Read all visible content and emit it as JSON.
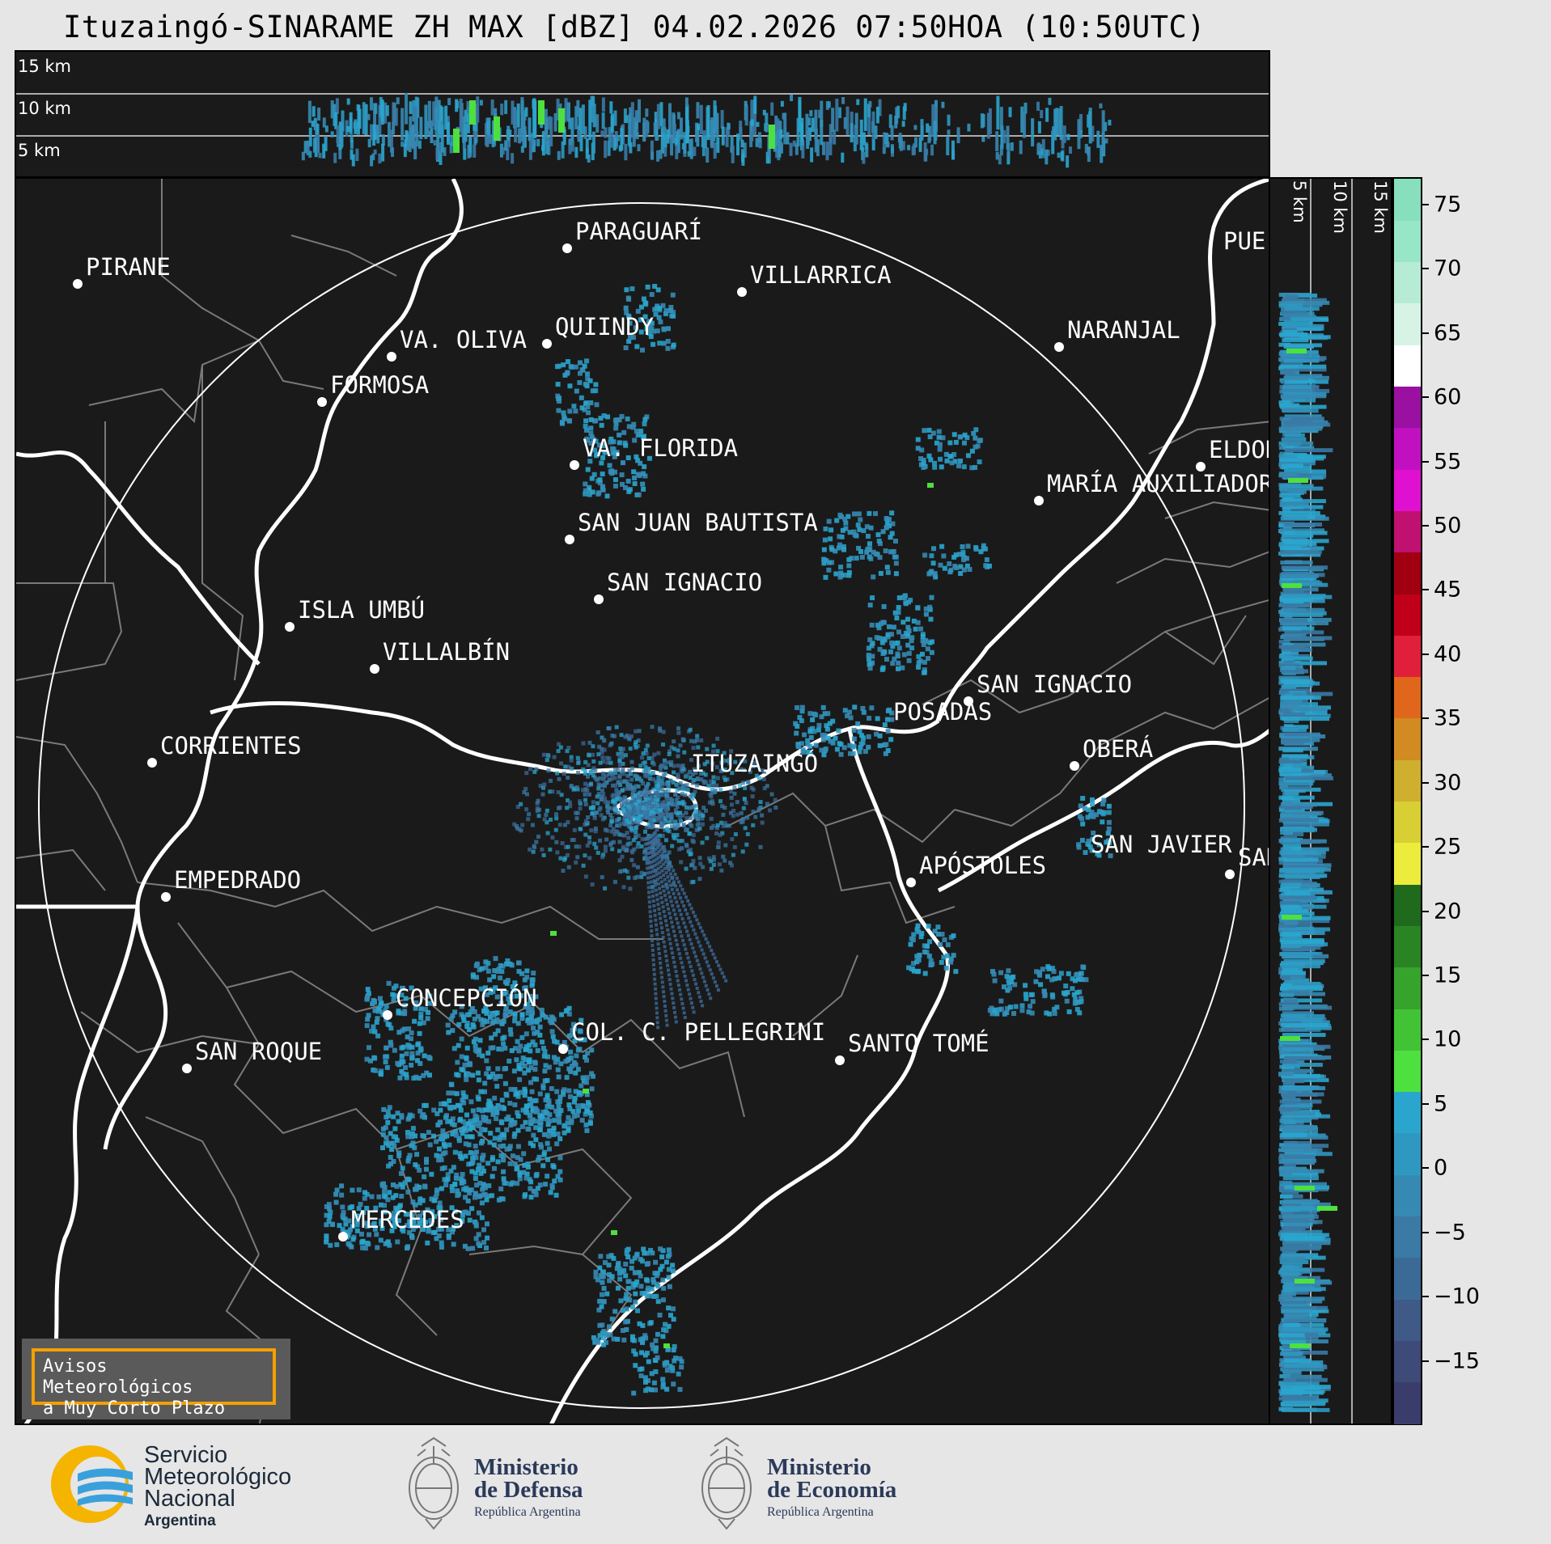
{
  "header": {
    "title": "Ituzaingó-SINARAME ZH MAX [dBZ] 04.02.2026 07:50HOA (10:50UTC)"
  },
  "top_panel": {
    "height_labels": [
      "15 km",
      "10 km",
      "5 km"
    ]
  },
  "side_panel": {
    "height_labels": [
      "5 km",
      "10 km",
      "15 km"
    ]
  },
  "map": {
    "cities": [
      {
        "name": "PARAGUARÍ"
      },
      {
        "name": "VILLARRICA"
      },
      {
        "name": "PIRANE"
      },
      {
        "name": "QUIINDY"
      },
      {
        "name": "VA. OLIVA"
      },
      {
        "name": "NARANJAL"
      },
      {
        "name": "FORMOSA"
      },
      {
        "name": "PUE"
      },
      {
        "name": "VA. FLORIDA"
      },
      {
        "name": "ELDOR"
      },
      {
        "name": "MARÍA AUXILIADOR"
      },
      {
        "name": "SAN JUAN BAUTISTA"
      },
      {
        "name": "SAN IGNACIO"
      },
      {
        "name": "ISLA UMBÚ"
      },
      {
        "name": "VILLALBÍN"
      },
      {
        "name": "SAN IGNACIO"
      },
      {
        "name": "POSADAS"
      },
      {
        "name": "CORRIENTES"
      },
      {
        "name": "OBERÁ"
      },
      {
        "name": "ITUZAINGÓ"
      },
      {
        "name": "APÓSTOLES"
      },
      {
        "name": "SAN JAVIER"
      },
      {
        "name": "SAN"
      },
      {
        "name": "EMPEDRADO"
      },
      {
        "name": "CONCEPCIÓN"
      },
      {
        "name": "COL. C. PELLEGRINI"
      },
      {
        "name": "SANTO TOMÉ"
      },
      {
        "name": "SAN ROQUE"
      },
      {
        "name": "MERCEDES"
      }
    ]
  },
  "colorbar": {
    "unit": "dBZ",
    "ticks": [
      "75",
      "70",
      "65",
      "60",
      "55",
      "50",
      "45",
      "40",
      "35",
      "30",
      "25",
      "20",
      "15",
      "10",
      "5",
      "0",
      "−5",
      "−10",
      "−15"
    ],
    "colors": [
      "#3a3d6b",
      "#3e4a78",
      "#3f5a87",
      "#3c6a96",
      "#3a7aa5",
      "#3689b3",
      "#2f98c1",
      "#2aa6ce",
      "#4ee03e",
      "#42c235",
      "#36a32c",
      "#2a8424",
      "#1f6a1c",
      "#ecec3c",
      "#d8cf34",
      "#cfb02e",
      "#d28a22",
      "#e0661c",
      "#e0203a",
      "#c00018",
      "#a00010",
      "#c01070",
      "#e010d0",
      "#c010c0",
      "#9a10a0",
      "#ffffff",
      "#d6f3e6",
      "#b6ecd6",
      "#98e6c8",
      "#88dfbd"
    ],
    "accent_colors": {
      "reflectivity_low": "#2aa6ce",
      "reflectivity_mid": "#4ee03e"
    }
  },
  "warning_box": {
    "line1": "Avisos Meteorológicos",
    "line2": "a Muy Corto Plazo"
  },
  "logos": {
    "smn": {
      "line1": "Servicio",
      "line2": "Meteorológico",
      "line3": "Nacional",
      "line4": "Argentina"
    },
    "defensa": {
      "line1": "Ministerio",
      "line2": "de Defensa",
      "line3": "República Argentina"
    },
    "economia": {
      "line1": "Ministerio",
      "line2": "de Economía",
      "line3": "República Argentina"
    }
  }
}
